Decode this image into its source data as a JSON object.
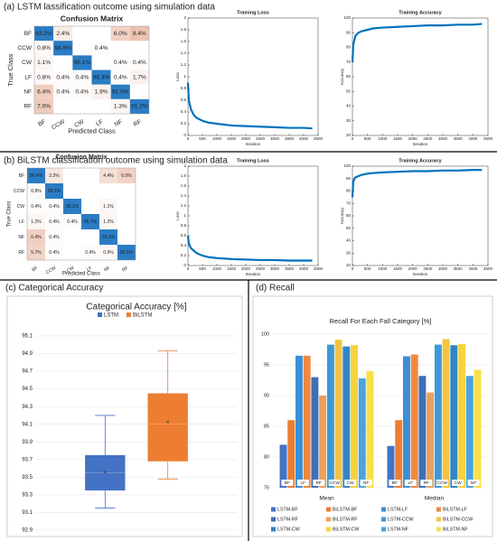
{
  "captions": [
    "(a) LSTM lassification outcome using simulation data",
    "(b) BiLSTM classification outcome using simulation data",
    "(c) Categorical Accuracy",
    "(d) Recall"
  ],
  "chart_data": [
    {
      "type": "heatmap",
      "title": "Confusion Matrix",
      "xlabel": "Predicted Class",
      "ylabel": "True Class",
      "categories": [
        "BF",
        "CCW",
        "CW",
        "LF",
        "NF",
        "RF"
      ],
      "matrix": [
        [
          83.2,
          2.4,
          null,
          null,
          6.0,
          8.4
        ],
        [
          0.8,
          98.8,
          null,
          0.4,
          null,
          null
        ],
        [
          1.1,
          null,
          98.1,
          null,
          0.4,
          0.4
        ],
        [
          0.8,
          0.4,
          0.4,
          96.3,
          0.4,
          1.7
        ],
        [
          6.4,
          0.4,
          0.4,
          1.9,
          91.0,
          null
        ],
        [
          7.0,
          null,
          null,
          null,
          1.3,
          91.2
        ]
      ],
      "value_labels": [
        [
          "83.2%",
          "2.4%",
          null,
          null,
          "6.0%",
          "8.4%"
        ],
        [
          "0.8%",
          "98.8%",
          null,
          "0.4%",
          null,
          null
        ],
        [
          "1.1%",
          null,
          "98.1%",
          null,
          "0.4%",
          "0.4%"
        ],
        [
          "0.8%",
          "0.4%",
          "0.4%",
          "96.3%",
          "0.4%",
          "1.7%"
        ],
        [
          "6.4%",
          "0.4%",
          "0.4%",
          "1.9%",
          "91.0%",
          null
        ],
        [
          "7.0%",
          null,
          null,
          null,
          "1.3%",
          "91.2%"
        ]
      ],
      "high_color": "#2b7cc4",
      "low_color": "#ecc3b2"
    },
    {
      "type": "line",
      "title": "Training Loss",
      "xlabel": "Iteration",
      "ylabel": "Loss",
      "color": "#0072bd",
      "x": [
        0,
        30,
        100,
        200,
        300,
        500,
        700,
        1000,
        1500,
        2000,
        2500,
        3000,
        3500,
        4000,
        4300
      ],
      "values": [
        0.9,
        0.6,
        0.45,
        0.35,
        0.3,
        0.25,
        0.22,
        0.2,
        0.17,
        0.16,
        0.15,
        0.14,
        0.13,
        0.13,
        0.12
      ],
      "xlim": [
        0,
        4500
      ],
      "xticks": [
        0,
        500,
        1000,
        1500,
        2000,
        2500,
        3000,
        3500,
        4000,
        4500
      ],
      "ylim": [
        0,
        2
      ],
      "yticks": [
        0,
        0.2,
        0.4,
        0.6,
        0.8,
        1,
        1.2,
        1.4,
        1.6,
        1.8,
        2
      ]
    },
    {
      "type": "line",
      "title": "Training Accuracy",
      "xlabel": "Iteration",
      "ylabel": "Accuracy",
      "color": "#0072bd",
      "x": [
        0,
        30,
        100,
        200,
        300,
        500,
        700,
        1000,
        1500,
        2000,
        2500,
        3000,
        3500,
        4000,
        4300
      ],
      "values": [
        70,
        82,
        88,
        90,
        91,
        92,
        93,
        93.5,
        94,
        94.5,
        95,
        95,
        95.5,
        95.5,
        96
      ],
      "xlim": [
        0,
        4500
      ],
      "xticks": [
        0,
        500,
        1000,
        1500,
        2000,
        2500,
        3000,
        3500,
        4000,
        4500
      ],
      "ylim": [
        20,
        100
      ],
      "yticks": [
        20,
        30,
        40,
        50,
        60,
        70,
        80,
        90,
        100
      ]
    },
    {
      "type": "heatmap",
      "title": "Confusion Matrix",
      "xlabel": "Predicted Class",
      "ylabel": "True Class",
      "categories": [
        "BF",
        "CCW",
        "CW",
        "LF",
        "NF",
        "RF"
      ],
      "matrix": [
        [
          86.4,
          3.2,
          null,
          null,
          4.4,
          6.0
        ],
        [
          0.8,
          99.2,
          null,
          null,
          null,
          null
        ],
        [
          0.4,
          0.4,
          98.1,
          null,
          1.1,
          null
        ],
        [
          1.2,
          0.4,
          0.4,
          96.7,
          1.2,
          null
        ],
        [
          6.4,
          0.4,
          null,
          null,
          93.3,
          null
        ],
        [
          5.7,
          0.4,
          null,
          0.4,
          0.9,
          92.5
        ]
      ],
      "value_labels": [
        [
          "86.4%",
          "3.2%",
          null,
          null,
          "4.4%",
          "6.0%"
        ],
        [
          "0.8%",
          "99.2%",
          null,
          null,
          null,
          null
        ],
        [
          "0.4%",
          "0.4%",
          "98.1%",
          null,
          "1.1%",
          null
        ],
        [
          "1.2%",
          "0.4%",
          "0.4%",
          "96.7%",
          "1.2%",
          null
        ],
        [
          "6.4%",
          "0.4%",
          null,
          null,
          "93.3%",
          null
        ],
        [
          "5.7%",
          "0.4%",
          null,
          "0.4%",
          "0.9%",
          "92.5%"
        ]
      ],
      "high_color": "#2b7cc4",
      "low_color": "#ecc3b2"
    },
    {
      "type": "line",
      "title": "Training Loss",
      "xlabel": "Iteration",
      "ylabel": "Loss",
      "color": "#0072bd",
      "x": [
        0,
        30,
        100,
        200,
        300,
        500,
        700,
        1000,
        1500,
        2000,
        2500,
        3000,
        3500,
        4000,
        4300
      ],
      "values": [
        0.6,
        0.45,
        0.35,
        0.3,
        0.25,
        0.2,
        0.17,
        0.15,
        0.13,
        0.12,
        0.11,
        0.11,
        0.1,
        0.1,
        0.1
      ],
      "xlim": [
        0,
        4500
      ],
      "xticks": [
        0,
        500,
        1000,
        1500,
        2000,
        2500,
        3000,
        3500,
        4000,
        4500
      ],
      "ylim": [
        0,
        2
      ],
      "yticks": [
        0,
        0.2,
        0.4,
        0.6,
        0.8,
        1,
        1.2,
        1.4,
        1.6,
        1.8,
        2
      ]
    },
    {
      "type": "line",
      "title": "Training Accuracy",
      "xlabel": "Iteration",
      "ylabel": "Accuracy",
      "color": "#0072bd",
      "x": [
        0,
        30,
        100,
        200,
        300,
        500,
        700,
        1000,
        1500,
        2000,
        2500,
        3000,
        3500,
        4000,
        4300
      ],
      "values": [
        75,
        88,
        91,
        92,
        93,
        94,
        94.5,
        95,
        95.5,
        96,
        96,
        96.5,
        96.5,
        97,
        97
      ],
      "xlim": [
        0,
        4500
      ],
      "xticks": [
        0,
        500,
        1000,
        1500,
        2000,
        2500,
        3000,
        3500,
        4000,
        4500
      ],
      "ylim": [
        20,
        100
      ],
      "yticks": [
        20,
        30,
        40,
        50,
        60,
        70,
        80,
        90,
        100
      ]
    },
    {
      "type": "box",
      "title": "Categorical Accuracy [%]",
      "grid": true,
      "series": [
        {
          "name": "LSTM",
          "color": "#4472c4",
          "min": 93.15,
          "q1": 93.35,
          "median": 93.55,
          "q3": 93.75,
          "max": 94.2,
          "mean": 93.55
        },
        {
          "name": "BiLSTM",
          "color": "#ed7d31",
          "min": 93.48,
          "q1": 93.68,
          "median": 94.1,
          "q3": 94.45,
          "max": 94.93,
          "mean": 94.12
        }
      ],
      "ylim": [
        92.9,
        95.1
      ],
      "yticks": [
        92.9,
        93.1,
        93.3,
        93.5,
        93.7,
        93.9,
        94.1,
        94.3,
        94.5,
        94.7,
        94.9,
        95.1
      ]
    },
    {
      "type": "bar",
      "title": "Recall For Each Fall Category [%]",
      "grid": true,
      "categories": [
        "Mean",
        "Median"
      ],
      "pair_labels": [
        "BF",
        "LF",
        "RF",
        "CCW",
        "CW",
        "NF"
      ],
      "ylim": [
        75,
        100
      ],
      "yticks": [
        75,
        80,
        85,
        90,
        95,
        100
      ],
      "series": [
        {
          "name": "LSTM-BF",
          "color": "#4472c4",
          "values": [
            82,
            81.8
          ]
        },
        {
          "name": "BiLSTM-BF",
          "color": "#ed7d31",
          "values": [
            86,
            86
          ]
        },
        {
          "name": "LSTM-LF",
          "color": "#3a8fd6",
          "values": [
            96.5,
            96.4
          ]
        },
        {
          "name": "BiLSTM-LF",
          "color": "#f0883e",
          "values": [
            96.5,
            96.7
          ]
        },
        {
          "name": "LSTM-RF",
          "color": "#3e6fb8",
          "values": [
            93,
            93.2
          ]
        },
        {
          "name": "BiLSTM-RF",
          "color": "#e9a15c",
          "values": [
            90,
            90.5
          ]
        },
        {
          "name": "LSTM-CCW",
          "color": "#3d9ad9",
          "values": [
            98.3,
            98.3
          ]
        },
        {
          "name": "BiLSTM-CCW",
          "color": "#f5c342",
          "values": [
            99.1,
            99.2
          ]
        },
        {
          "name": "LSTM-CW",
          "color": "#2f86c8",
          "values": [
            98,
            98.2
          ]
        },
        {
          "name": "BiLSTM-CW",
          "color": "#f7d23c",
          "values": [
            98.2,
            98.4
          ]
        },
        {
          "name": "LSTM-NF",
          "color": "#4aa3dd",
          "values": [
            92.8,
            93.2
          ]
        },
        {
          "name": "BiLSTM-NF",
          "color": "#f9e04a",
          "values": [
            94,
            94.2
          ]
        }
      ]
    }
  ]
}
